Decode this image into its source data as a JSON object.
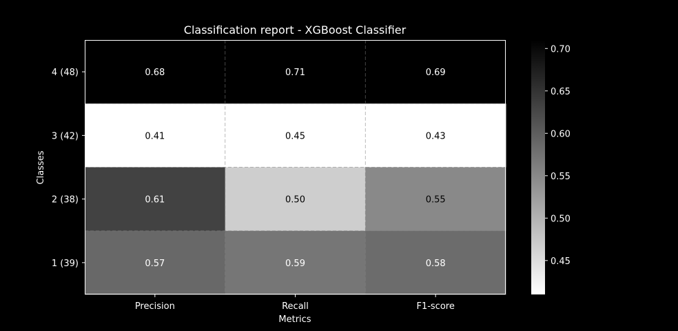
{
  "chart_data": {
    "type": "heatmap",
    "title": "Classification report - XGBoost Classifier",
    "xlabel": "Metrics",
    "ylabel": "Classes",
    "columns": [
      "Precision",
      "Recall",
      "F1-score"
    ],
    "rows": [
      "4 (48)",
      "3 (42)",
      "2 (38)",
      "1 (39)"
    ],
    "values": [
      [
        0.68,
        0.71,
        0.69
      ],
      [
        0.41,
        0.45,
        0.43
      ],
      [
        0.61,
        0.5,
        0.55
      ],
      [
        0.57,
        0.59,
        0.58
      ]
    ],
    "value_labels": [
      [
        "0.68",
        "0.71",
        "0.69"
      ],
      [
        "0.41",
        "0.45",
        "0.43"
      ],
      [
        "0.61",
        "0.50",
        "0.55"
      ],
      [
        "0.57",
        "0.59",
        "0.58"
      ]
    ],
    "colormap": "reversed-gray",
    "colorbar": {
      "range": [
        0.41,
        0.71
      ],
      "ticks": [
        0.45,
        0.5,
        0.55,
        0.6,
        0.65,
        0.7
      ],
      "tick_labels": [
        "0.45",
        "0.50",
        "0.55",
        "0.60",
        "0.65",
        "0.70"
      ]
    },
    "grid": "dashed",
    "colors": {
      "background": "#000000",
      "text": "#ffffff",
      "low": "#ffffff",
      "high": "#000000"
    }
  }
}
